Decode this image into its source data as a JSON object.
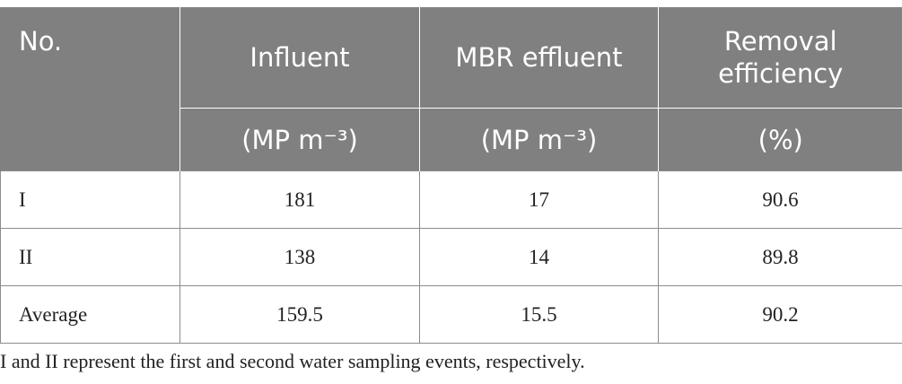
{
  "table": {
    "header": [
      "No.",
      "Influent",
      "MBR effluent",
      "Removal efficiency"
    ],
    "units": [
      "(MP m⁻³)",
      "(MP m⁻³)",
      "(%)"
    ],
    "rows": [
      [
        "I",
        181,
        17,
        90.6
      ],
      [
        "II",
        138,
        14,
        89.8
      ],
      [
        "Average",
        159.5,
        15.5,
        90.2
      ]
    ]
  },
  "footnote": "I and II represent the first and second water sampling events, respectively."
}
